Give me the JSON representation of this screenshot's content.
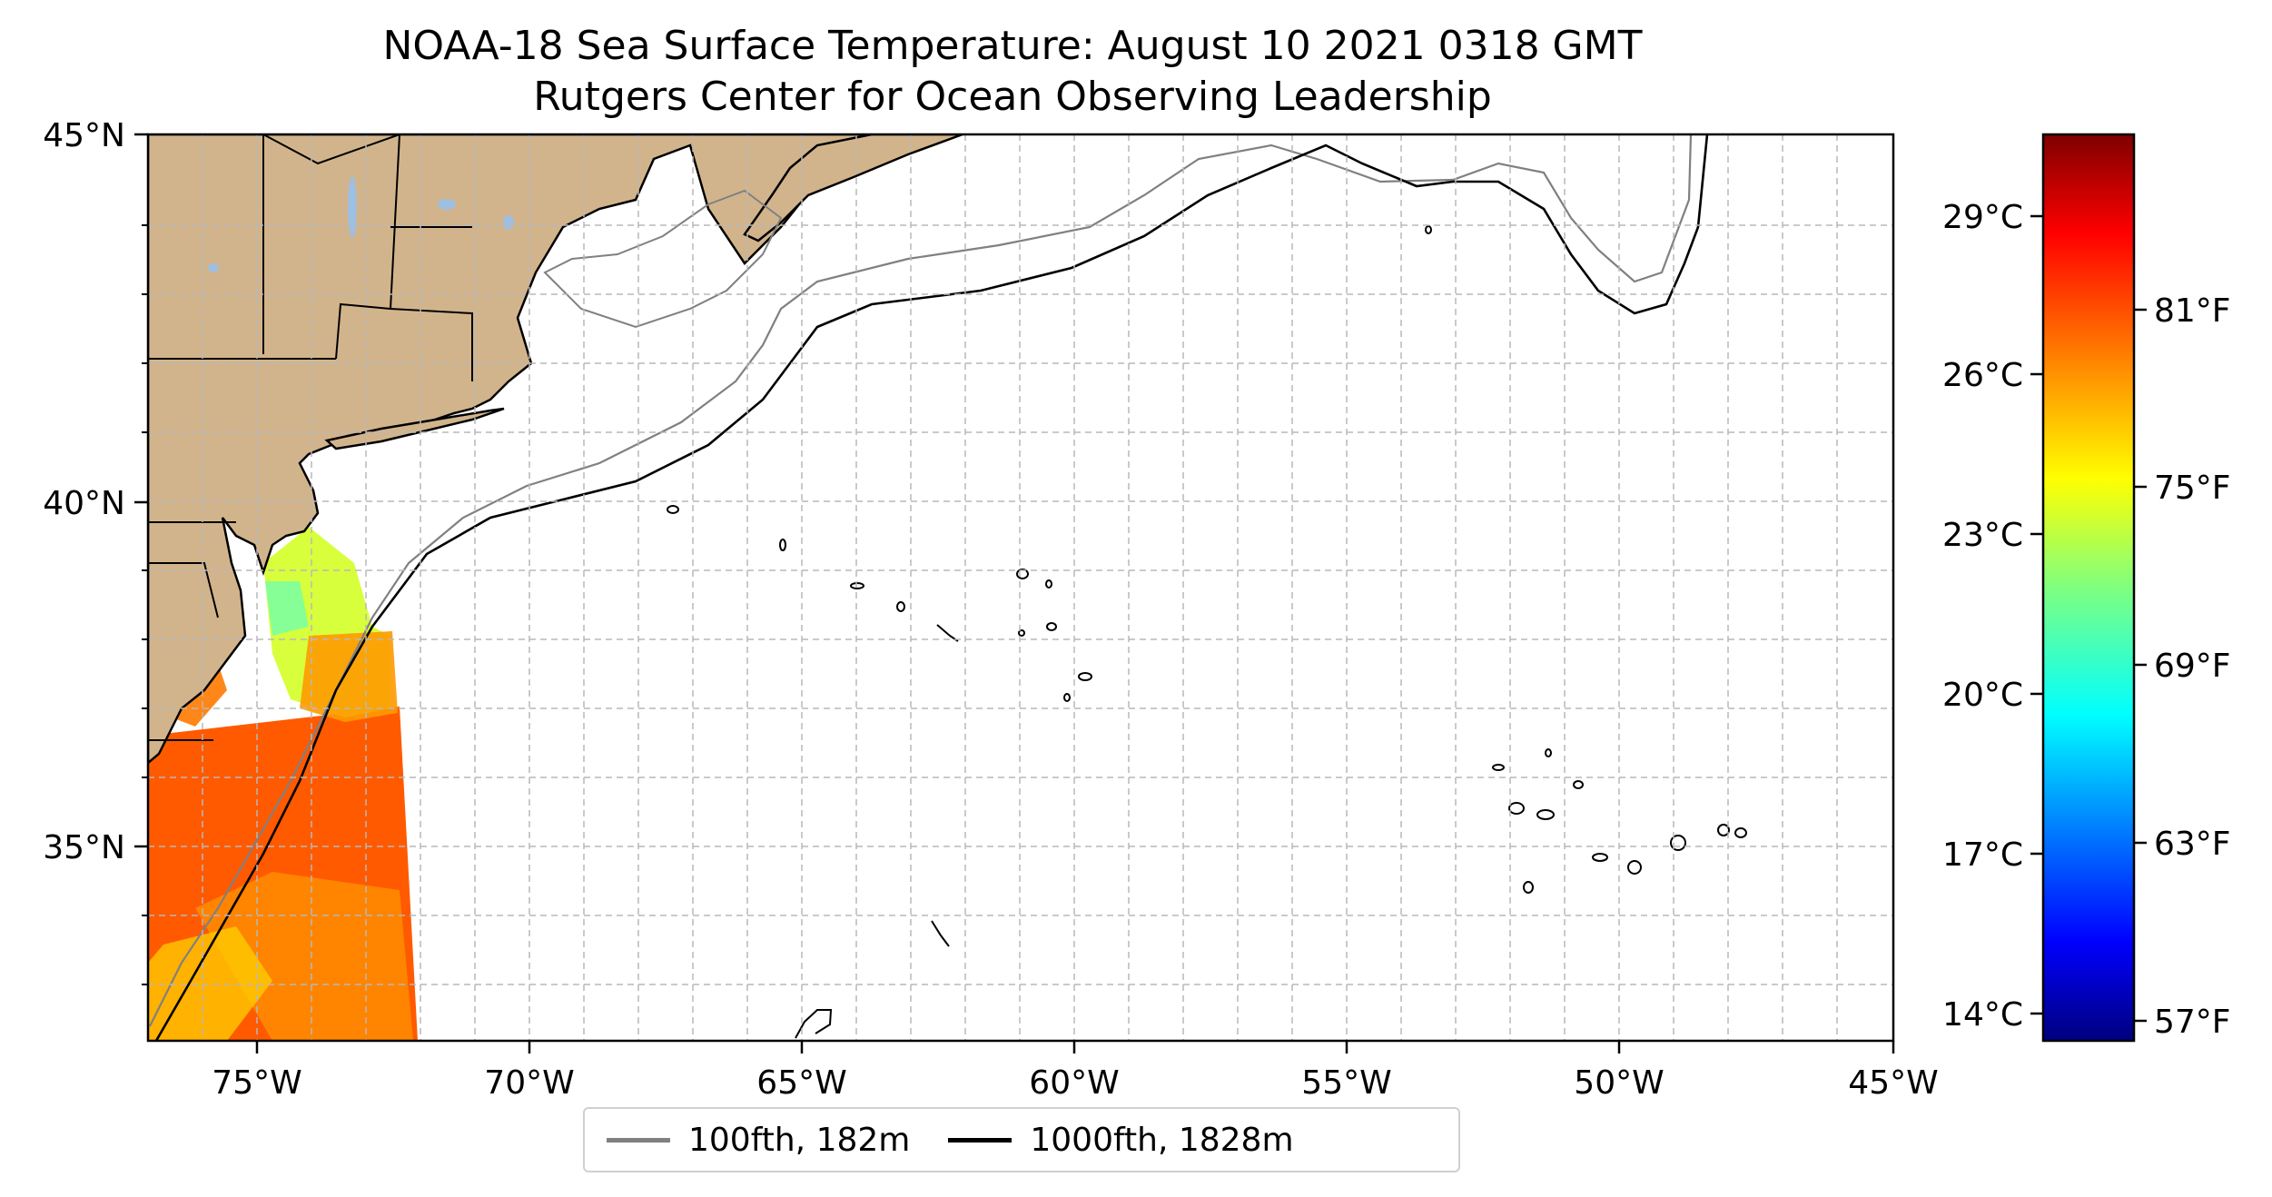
{
  "title": {
    "line1": "NOAA-18 Sea Surface Temperature: August 10 2021 0318 GMT",
    "line2": "Rutgers Center for Ocean Observing Leadership"
  },
  "map": {
    "lon_range": [
      -77,
      -45
    ],
    "lat_range": [
      32.4,
      45
    ],
    "lon_ticks": [
      "75°W",
      "70°W",
      "65°W",
      "60°W",
      "55°W",
      "50°W",
      "45°W"
    ],
    "lat_ticks": [
      "45°N",
      "40°N",
      "35°N"
    ],
    "grid": true,
    "colors": {
      "land": "#d2b48c",
      "lakes": "#9fbfe0",
      "ocean": "#ffffff"
    }
  },
  "legend": {
    "items": [
      {
        "label": "100fth, 182m",
        "color": "#808080"
      },
      {
        "label": "1000fth, 1828m",
        "color": "#000000"
      }
    ]
  },
  "colorbar": {
    "colormap": "jet",
    "celsius_ticks": [
      "29°C",
      "26°C",
      "23°C",
      "20°C",
      "17°C",
      "14°C"
    ],
    "fahrenheit_ticks": [
      "81°F",
      "75°F",
      "69°F",
      "63°F",
      "57°F"
    ]
  }
}
